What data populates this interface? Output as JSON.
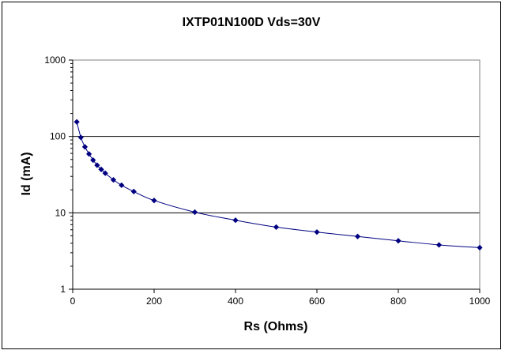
{
  "chart_data": {
    "type": "scatter",
    "title": "IXTP01N100D Vds=30V",
    "xlabel": "Rs (Ohms)",
    "ylabel": "Id (mA)",
    "xlim": [
      0,
      1000
    ],
    "ylim": [
      1,
      1000
    ],
    "y_scale": "log",
    "x_ticks": [
      "0",
      "200",
      "400",
      "600",
      "800",
      "1000"
    ],
    "y_ticks": [
      "1",
      "10",
      "100",
      "1000"
    ],
    "grid": "horizontal major gridlines",
    "legend": "none",
    "marker": "diamond",
    "color": "#000080",
    "series": [
      {
        "x": [
          10,
          20,
          30,
          40,
          50,
          60,
          70,
          80,
          100,
          120,
          150,
          200,
          300,
          400,
          500,
          600,
          700,
          800,
          900,
          1000
        ],
        "values": [
          155,
          97,
          73,
          59,
          49,
          42,
          37,
          33,
          27,
          23,
          19,
          14.5,
          10.2,
          8.0,
          6.5,
          5.6,
          4.9,
          4.3,
          3.8,
          3.5
        ]
      }
    ]
  }
}
